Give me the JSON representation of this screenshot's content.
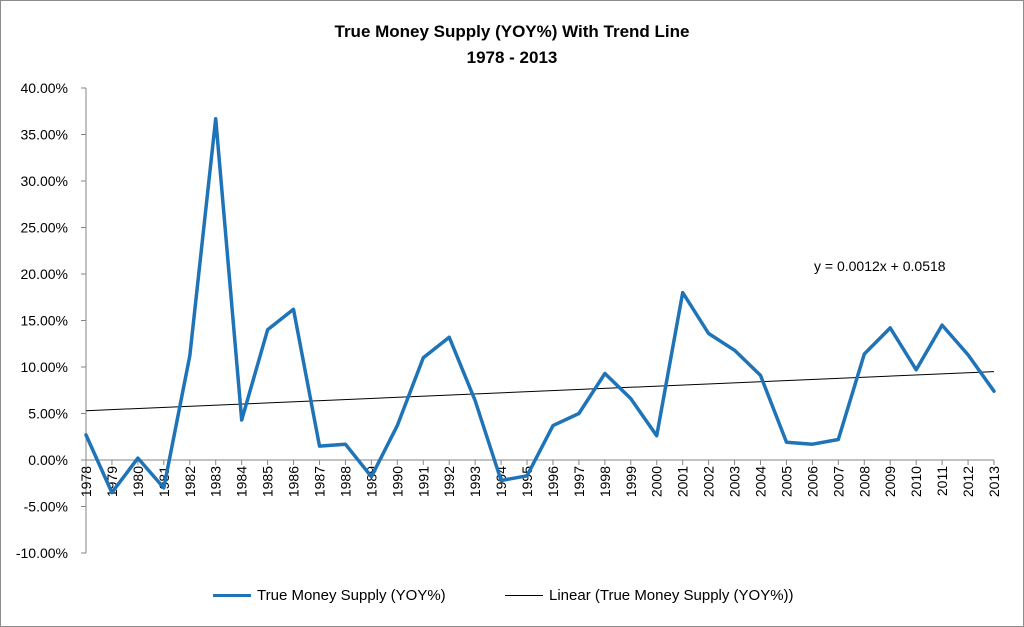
{
  "chart_data": {
    "type": "line",
    "title": "True Money Supply (YOY%) With Trend Line",
    "subtitle": "1978 - 2013",
    "xlabel": "",
    "ylabel": "",
    "ylim": [
      -0.1,
      0.4
    ],
    "yticks": [
      "-10.00%",
      "-5.00%",
      "0.00%",
      "5.00%",
      "10.00%",
      "15.00%",
      "20.00%",
      "25.00%",
      "30.00%",
      "35.00%",
      "40.00%"
    ],
    "categories": [
      "1978",
      "1979",
      "1980",
      "1981",
      "1982",
      "1983",
      "1984",
      "1985",
      "1986",
      "1987",
      "1988",
      "1989",
      "1990",
      "1991",
      "1992",
      "1993",
      "1994",
      "1995",
      "1996",
      "1997",
      "1998",
      "1999",
      "2000",
      "2001",
      "2002",
      "2003",
      "2004",
      "2005",
      "2006",
      "2007",
      "2008",
      "2009",
      "2010",
      "2011",
      "2012",
      "2013"
    ],
    "series": [
      {
        "name": "True Money Supply (YOY%)",
        "color": "#1f74b8",
        "values": [
          0.027,
          -0.035,
          0.002,
          -0.03,
          0.112,
          0.367,
          0.043,
          0.14,
          0.162,
          0.015,
          0.017,
          -0.018,
          0.037,
          0.11,
          0.132,
          0.064,
          -0.022,
          -0.017,
          0.037,
          0.05,
          0.093,
          0.066,
          0.026,
          0.18,
          0.136,
          0.118,
          0.091,
          0.019,
          0.017,
          0.022,
          0.114,
          0.142,
          0.097,
          0.145,
          0.113,
          0.074
        ]
      },
      {
        "name": "Linear (True Money Supply (YOY%))",
        "color": "#000000",
        "type": "trend",
        "slope": 0.0012,
        "intercept": 0.0518
      }
    ],
    "trend_equation": "y = 0.0012x + 0.0518",
    "grid": false,
    "legend_position": "bottom"
  }
}
